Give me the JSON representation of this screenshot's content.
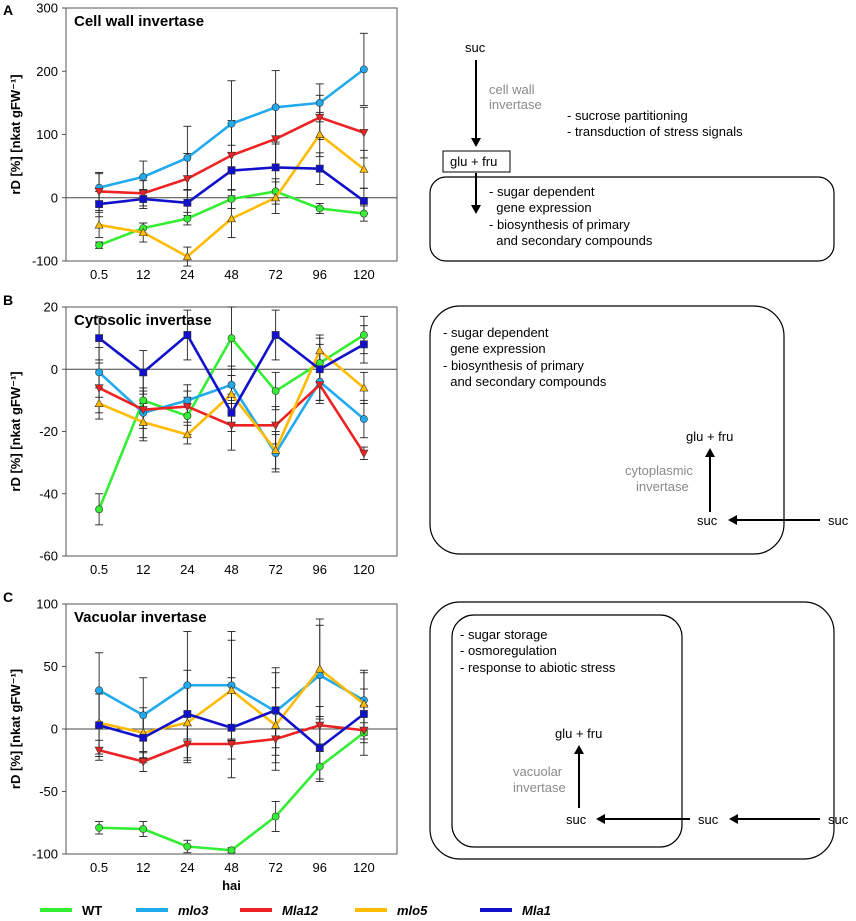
{
  "chart_data": [
    {
      "panel": "A",
      "type": "line",
      "title": "Cell wall invertase",
      "ylabel": "rD [%] [nkat gFW⁻¹]",
      "xlabel": "",
      "categories": [
        "0.5",
        "12",
        "24",
        "48",
        "72",
        "96",
        "120"
      ],
      "ylim": [
        -100,
        300
      ],
      "yticks": [
        "-100",
        "0",
        "100",
        "200",
        "300"
      ],
      "yticks_values": [
        -100,
        0,
        100,
        200,
        300
      ],
      "series": [
        {
          "name": "WT",
          "values": [
            -75,
            -48,
            -33,
            -2,
            10,
            -17,
            -25
          ],
          "err": [
            5,
            8,
            10,
            15,
            20,
            8,
            12
          ]
        },
        {
          "name": "mlo3",
          "values": [
            16,
            33,
            63,
            117,
            143,
            150,
            203
          ],
          "err": [
            22,
            25,
            50,
            68,
            58,
            30,
            57
          ]
        },
        {
          "name": "Mla12",
          "values": [
            10,
            7,
            30,
            67,
            93,
            127,
            103
          ],
          "err": [
            30,
            20,
            40,
            55,
            50,
            35,
            40
          ]
        },
        {
          "name": "mlo5",
          "values": [
            -43,
            -55,
            -93,
            -33,
            0,
            100,
            45
          ],
          "err": [
            20,
            15,
            15,
            30,
            25,
            35,
            30
          ]
        },
        {
          "name": "Mla1",
          "values": [
            -10,
            -2,
            -8,
            43,
            48,
            46,
            -5
          ],
          "err": [
            20,
            15,
            20,
            40,
            40,
            25,
            20
          ]
        }
      ]
    },
    {
      "panel": "B",
      "type": "line",
      "title": "Cytosolic invertase",
      "ylabel": "rD [%] [nkat gFW⁻¹]",
      "xlabel": "",
      "categories": [
        "0.5",
        "12",
        "24",
        "48",
        "72",
        "96",
        "120"
      ],
      "ylim": [
        -60,
        20
      ],
      "yticks": [
        "-60",
        "-40",
        "-20",
        "0",
        "20"
      ],
      "yticks_values": [
        -60,
        -40,
        -20,
        0,
        20
      ],
      "series": [
        {
          "name": "WT",
          "values": [
            -45,
            -10,
            -15,
            10,
            -7,
            2,
            11
          ],
          "err": [
            5,
            8,
            6,
            10,
            6,
            6,
            6
          ]
        },
        {
          "name": "mlo3",
          "values": [
            -1,
            -14,
            -10,
            -5,
            -27,
            -4,
            -16
          ],
          "err": [
            8,
            8,
            5,
            6,
            6,
            6,
            6
          ]
        },
        {
          "name": "Mla12",
          "values": [
            -6,
            -13,
            -12,
            -18,
            -18,
            -5,
            -27
          ],
          "err": [
            8,
            6,
            5,
            8,
            6,
            6,
            2
          ]
        },
        {
          "name": "mlo5",
          "values": [
            -11,
            -17,
            -21,
            -8,
            -26,
            6,
            -6
          ],
          "err": [
            5,
            6,
            3,
            6,
            6,
            5,
            5
          ]
        },
        {
          "name": "Mla1",
          "values": [
            10,
            -1,
            11,
            -14,
            11,
            0,
            8
          ],
          "err": [
            7,
            7,
            8,
            6,
            8,
            10,
            6
          ]
        }
      ]
    },
    {
      "panel": "C",
      "type": "line",
      "title": "Vacuolar invertase",
      "ylabel": "rD [%] [nkat gFW⁻¹]",
      "xlabel": "hai",
      "categories": [
        "0.5",
        "12",
        "24",
        "48",
        "72",
        "96",
        "120"
      ],
      "ylim": [
        -100,
        100
      ],
      "yticks": [
        "-100",
        "-50",
        "0",
        "50",
        "100"
      ],
      "yticks_values": [
        -100,
        -50,
        0,
        50,
        100
      ],
      "series": [
        {
          "name": "WT",
          "values": [
            -79,
            -80,
            -94,
            -97,
            -70,
            -30,
            -3
          ],
          "err": [
            5,
            6,
            5,
            2,
            12,
            12,
            8
          ]
        },
        {
          "name": "mlo3",
          "values": [
            31,
            11,
            35,
            35,
            14,
            43,
            23
          ],
          "err": [
            30,
            30,
            43,
            43,
            35,
            40,
            24
          ]
        },
        {
          "name": "Mla12",
          "values": [
            -17,
            -26,
            -12,
            -12,
            -8,
            3,
            -1
          ],
          "err": [
            8,
            8,
            15,
            12,
            25,
            15,
            20
          ]
        },
        {
          "name": "mlo5",
          "values": [
            5,
            -3,
            5,
            31,
            3,
            48,
            20
          ],
          "err": [
            25,
            20,
            30,
            40,
            30,
            40,
            25
          ]
        },
        {
          "name": "Mla1",
          "values": [
            3,
            -7,
            12,
            1,
            15,
            -15,
            12
          ],
          "err": [
            25,
            20,
            35,
            40,
            30,
            25,
            20
          ]
        }
      ]
    }
  ],
  "legend": [
    {
      "name": "WT",
      "color": "#33ee33",
      "marker": "circle"
    },
    {
      "name": "mlo3",
      "color": "#22aaee",
      "marker": "circle"
    },
    {
      "name": "Mla12",
      "color": "#ee2222",
      "marker": "triangle-down"
    },
    {
      "name": "mlo5",
      "color": "#ffbb00",
      "marker": "triangle-up"
    },
    {
      "name": "Mla1",
      "color": "#1111cc",
      "marker": "square"
    }
  ],
  "diagrams": {
    "A": {
      "suc": "suc",
      "enzyme_line1": "cell wall",
      "enzyme_line2": "invertase",
      "roles": [
        "- sucrose partitioning",
        "- transduction of stress signals"
      ],
      "product": "glu + fru",
      "effects": [
        "- sugar dependent",
        "  gene expression",
        "- biosynthesis of primary",
        "  and secondary compounds"
      ]
    },
    "B": {
      "effects": [
        "- sugar dependent",
        "  gene expression",
        "- biosynthesis of primary",
        "  and secondary compounds"
      ],
      "product": "glu + fru",
      "enzyme_line1": "cytoplasmic",
      "enzyme_line2": "invertase",
      "suc_inner": "suc",
      "suc_outer": "suc"
    },
    "C": {
      "effects": [
        "- sugar storage",
        "- osmoregulation",
        "- response to abiotic stress"
      ],
      "product": "glu + fru",
      "enzyme_line1": "vacuolar",
      "enzyme_line2": "invertase",
      "suc_vacuole": "suc",
      "suc_cytoplasm": "suc",
      "suc_outer": "suc"
    }
  }
}
